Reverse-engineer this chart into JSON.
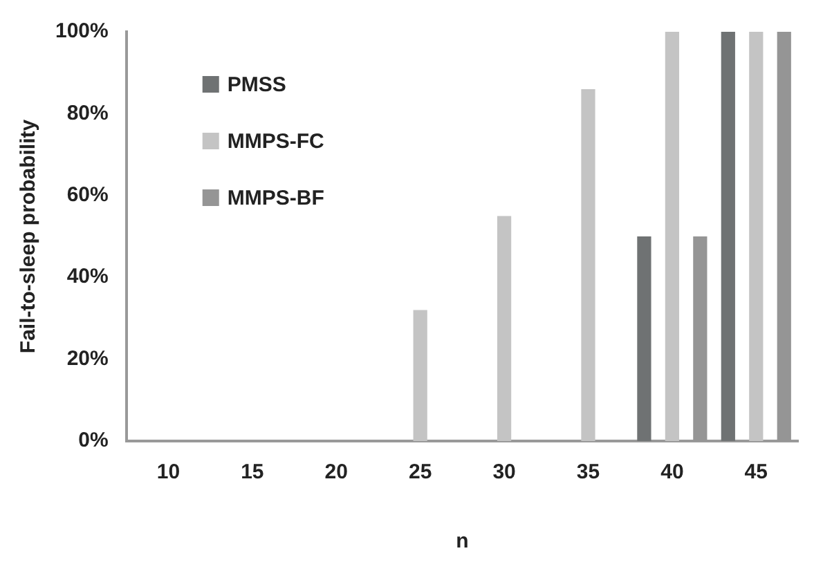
{
  "chart_data": {
    "type": "bar",
    "xlabel": "n",
    "ylabel": "Fail-to-sleep probability",
    "categories": [
      "10",
      "15",
      "20",
      "25",
      "30",
      "35",
      "40",
      "45"
    ],
    "series": [
      {
        "name": "PMSS",
        "color": "#6f7273",
        "values": [
          0,
          0,
          0,
          0,
          0,
          0,
          50,
          100
        ]
      },
      {
        "name": "MMPS-FC",
        "color": "#c4c4c4",
        "values": [
          0,
          0,
          0,
          32,
          55,
          86,
          100,
          100
        ]
      },
      {
        "name": "MMPS-BF",
        "color": "#959595",
        "values": [
          0,
          0,
          0,
          0,
          0,
          0,
          50,
          100
        ]
      }
    ],
    "ylim": [
      0,
      100
    ],
    "yticks": [
      {
        "value": 0,
        "label": "0%"
      },
      {
        "value": 20,
        "label": "20%"
      },
      {
        "value": 40,
        "label": "40%"
      },
      {
        "value": 60,
        "label": "60%"
      },
      {
        "value": 80,
        "label": "80%"
      },
      {
        "value": 100,
        "label": "100%"
      }
    ],
    "grid": false,
    "legend": "top left"
  }
}
